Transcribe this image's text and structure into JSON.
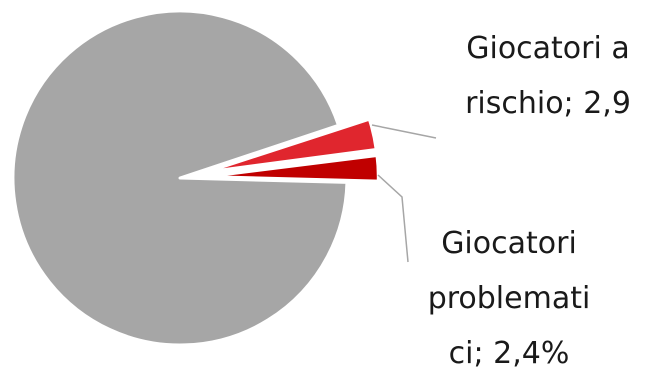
{
  "chart_data": {
    "type": "pie",
    "slices": [
      {
        "label_lines": [],
        "value": 94.7,
        "color": "#a6a6a6",
        "exploded": false
      },
      {
        "label_lines": [
          "Giocatori a",
          "rischio; 2,9"
        ],
        "value": 2.9,
        "color": "#e0262e",
        "exploded": true
      },
      {
        "label_lines": [
          "Giocatori",
          "problemati",
          "ci; 2,4%"
        ],
        "value": 2.4,
        "color": "#c00000",
        "exploded": true
      }
    ],
    "legend": "none"
  }
}
